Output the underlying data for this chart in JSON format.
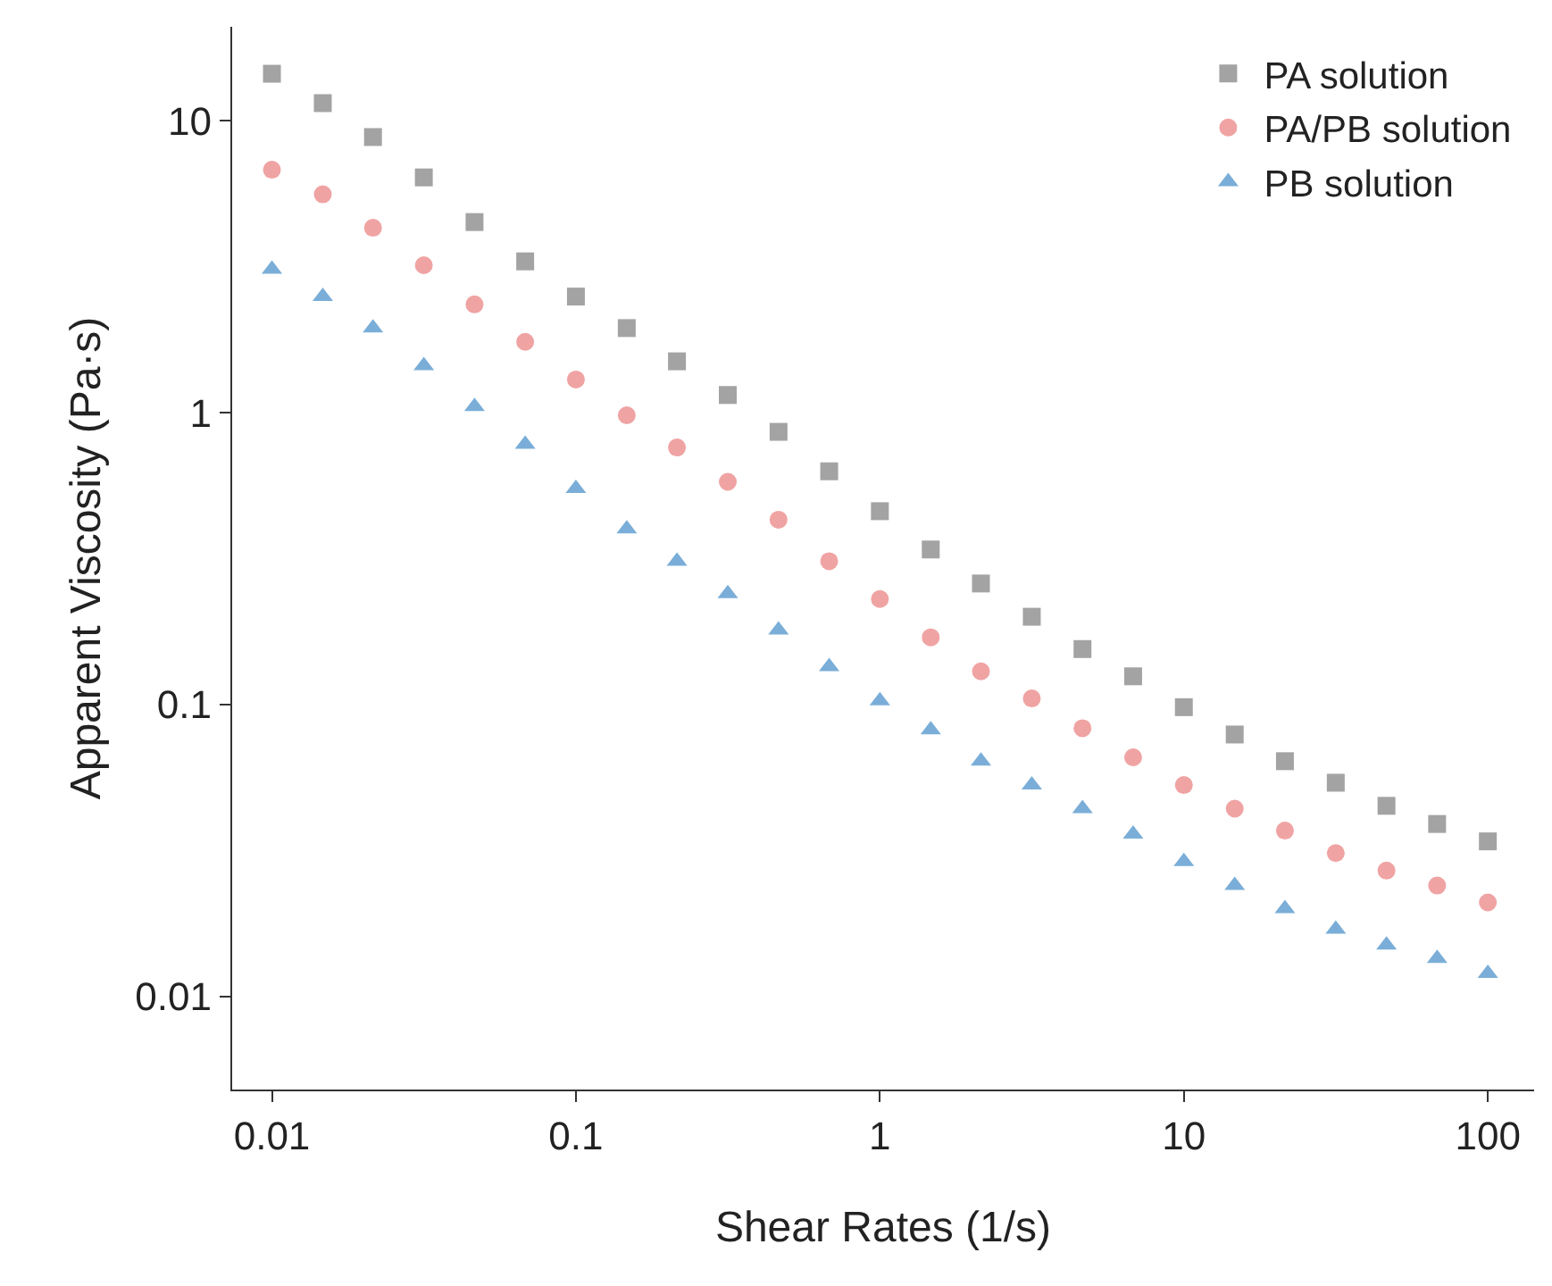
{
  "chart_data": {
    "type": "scatter",
    "xlabel": "Shear Rates (1/s)",
    "ylabel": "Apparent Viscosity (Pa·s)",
    "log": "xy",
    "x": [
      0.01,
      0.0147,
      0.0215,
      0.0316,
      0.0464,
      0.0681,
      0.1,
      0.147,
      0.215,
      0.316,
      0.464,
      0.681,
      1,
      1.47,
      2.15,
      3.16,
      4.64,
      6.81,
      10,
      14.7,
      21.5,
      31.6,
      46.4,
      68.1,
      100
    ],
    "xlim": [
      0.0074,
      142
    ],
    "ylim": [
      0.0048,
      21
    ],
    "xticks": [
      0.01,
      0.1,
      1,
      10,
      100
    ],
    "yticks": [
      0.01,
      0.1,
      1,
      10
    ],
    "legend": "top right",
    "series": [
      {
        "name": "PA solution",
        "color": "#a3a3a3",
        "marker": "square",
        "values": [
          14.5,
          11.5,
          8.8,
          6.4,
          4.5,
          3.3,
          2.5,
          1.95,
          1.5,
          1.15,
          0.86,
          0.63,
          0.46,
          0.34,
          0.26,
          0.2,
          0.155,
          0.125,
          0.098,
          0.079,
          0.064,
          0.054,
          0.045,
          0.039,
          0.034
        ]
      },
      {
        "name": "PA/PB solution",
        "color": "#f0a3a3",
        "marker": "circle",
        "values": [
          6.8,
          5.6,
          4.3,
          3.2,
          2.35,
          1.75,
          1.3,
          0.98,
          0.76,
          0.58,
          0.43,
          0.31,
          0.23,
          0.17,
          0.13,
          0.105,
          0.083,
          0.066,
          0.053,
          0.044,
          0.037,
          0.031,
          0.027,
          0.024,
          0.021
        ]
      },
      {
        "name": "PB solution",
        "color": "#7aaed8",
        "marker": "triangle",
        "values": [
          3.1,
          2.5,
          1.95,
          1.45,
          1.05,
          0.78,
          0.55,
          0.4,
          0.31,
          0.24,
          0.18,
          0.135,
          0.103,
          0.082,
          0.064,
          0.053,
          0.044,
          0.036,
          0.029,
          0.024,
          0.02,
          0.017,
          0.015,
          0.0135,
          0.012
        ]
      }
    ]
  }
}
